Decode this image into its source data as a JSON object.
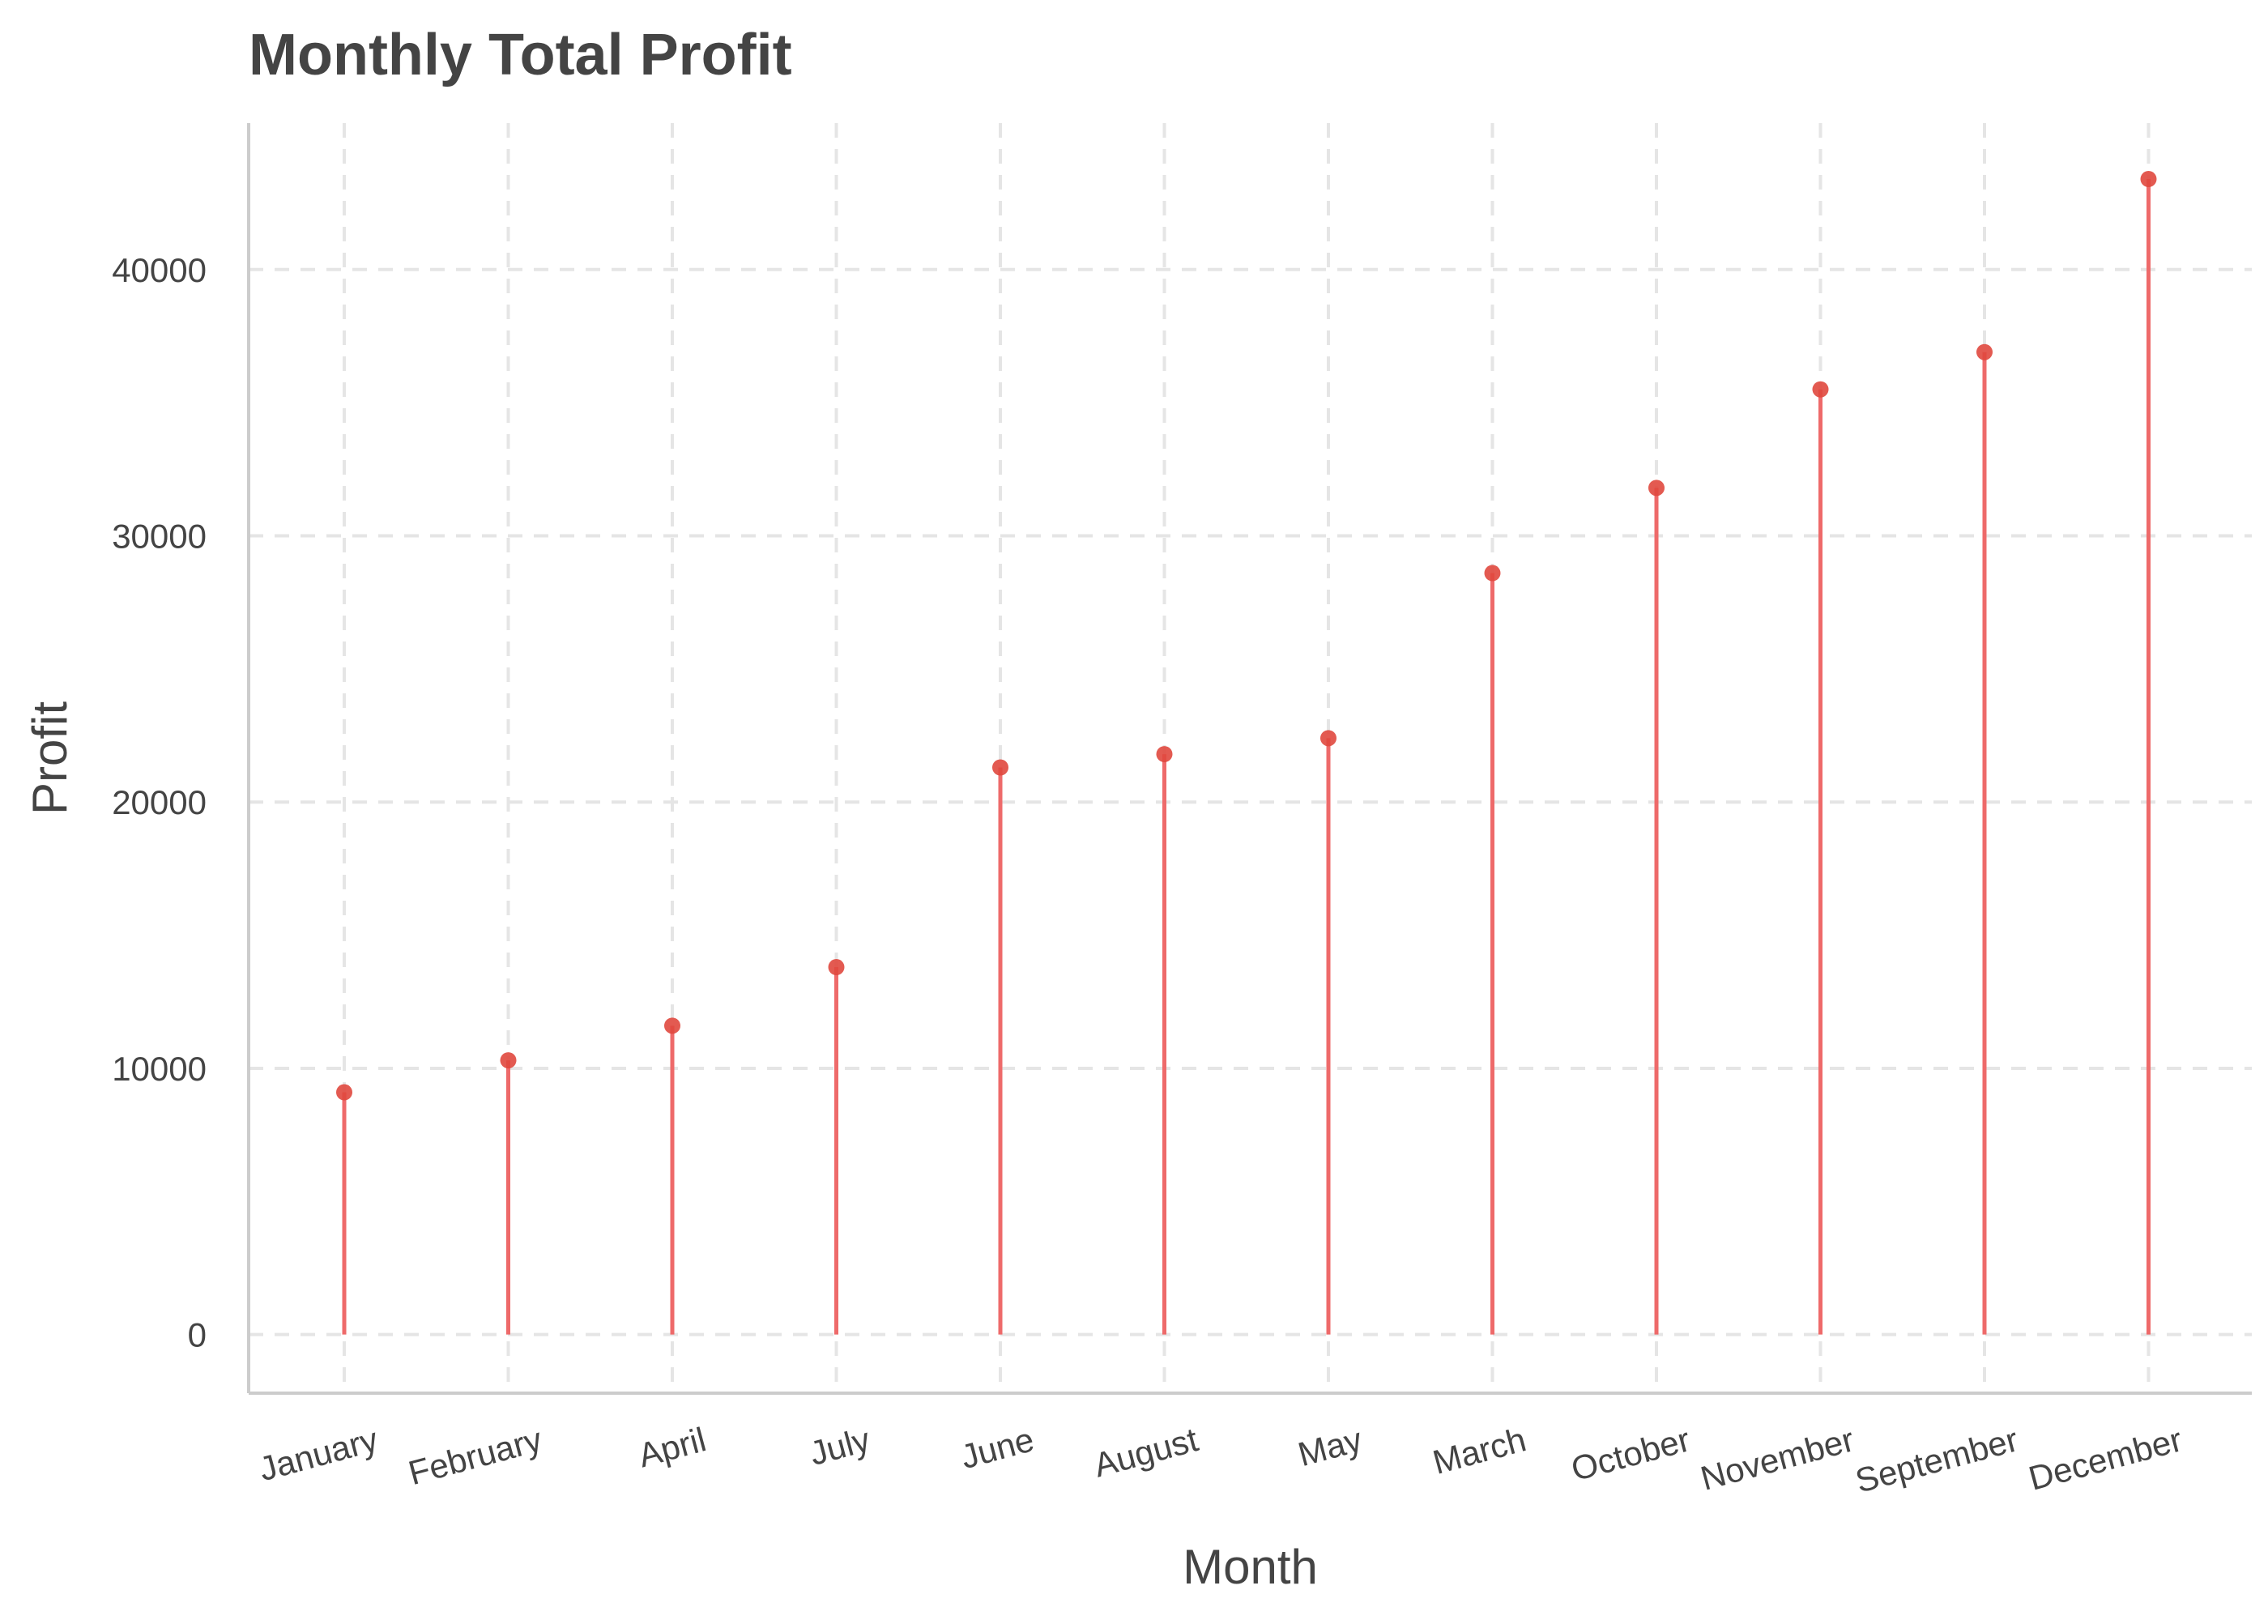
{
  "chart_data": {
    "type": "lollipop",
    "title": "Monthly Total Profit",
    "xlabel": "Month",
    "ylabel": "Profit",
    "categories": [
      "January",
      "February",
      "April",
      "July",
      "June",
      "August",
      "May",
      "March",
      "October",
      "November",
      "September",
      "December"
    ],
    "values": [
      9100,
      10300,
      11600,
      13800,
      21300,
      21800,
      22400,
      28600,
      31800,
      35500,
      36900,
      43400
    ],
    "ylim": [
      -2200,
      45500
    ],
    "yticks": [
      0,
      10000,
      20000,
      30000,
      40000
    ],
    "ytick_labels": [
      "0",
      "10000",
      "20000",
      "30000",
      "40000"
    ],
    "grid": true,
    "legend": "none",
    "colors": {
      "stem": "#ee6a6a",
      "point": "#e0483e",
      "text": "#444444",
      "grid": "#e5e5e5",
      "axis": "#cccccc"
    }
  }
}
